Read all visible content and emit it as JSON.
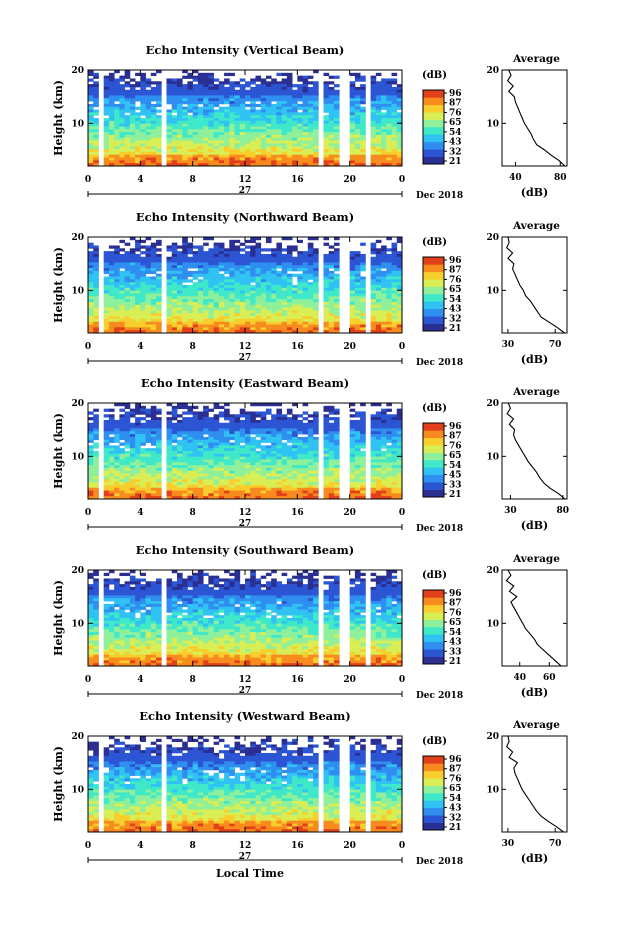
{
  "figure": {
    "xlabel": "Local Time"
  },
  "colormap": [
    "#2b2f92",
    "#2c55d4",
    "#2f8ef0",
    "#30c2f2",
    "#3ee8c9",
    "#8ef09a",
    "#d9ee55",
    "#f8ce2c",
    "#f78b1e",
    "#e2401a"
  ],
  "chart_data": [
    {
      "type": "heatmap",
      "title": "Echo Intensity (Vertical Beam)",
      "ylabel": "Height (km)",
      "x_ticks": [
        "0",
        "4",
        "8",
        "12",
        "16",
        "20",
        "0"
      ],
      "xlim": [
        0,
        24
      ],
      "y_ticks": [
        "20",
        "10"
      ],
      "ylim": [
        2,
        20
      ],
      "date_center": "27",
      "date_right": "Dec 2018",
      "colorbar": {
        "unit": "(dB)",
        "ticks": [
          "96",
          "87",
          "76",
          "65",
          "54",
          "43",
          "32",
          "21"
        ],
        "range": [
          21,
          96
        ]
      },
      "data_gaps_hours": [
        [
          0.7,
          1.0
        ],
        [
          5.6,
          5.8
        ],
        [
          17.6,
          17.8
        ],
        [
          19.4,
          20.0
        ],
        [
          21.1,
          21.5
        ]
      ],
      "profile": {
        "title": "Average",
        "xlabel": "(dB)",
        "x_ticks": [
          "40",
          "80"
        ],
        "xlim": [
          28,
          86
        ],
        "y_ticks": [
          "20",
          "10"
        ],
        "heights": [
          2,
          3,
          4,
          5,
          6,
          7,
          8,
          9,
          10,
          11,
          12,
          13,
          14,
          15,
          16,
          17,
          18,
          19,
          20
        ],
        "values": [
          84,
          79,
          72,
          66,
          59,
          56,
          54,
          51,
          48,
          46,
          44,
          42,
          40,
          39,
          34,
          38,
          33,
          36,
          34
        ]
      }
    },
    {
      "type": "heatmap",
      "title": "Echo Intensity (Northward Beam)",
      "ylabel": "Height (km)",
      "x_ticks": [
        "0",
        "4",
        "8",
        "12",
        "16",
        "20",
        "0"
      ],
      "xlim": [
        0,
        24
      ],
      "y_ticks": [
        "20",
        "10"
      ],
      "ylim": [
        2,
        20
      ],
      "date_center": "27",
      "date_right": "Dec 2018",
      "colorbar": {
        "unit": "(dB)",
        "ticks": [
          "96",
          "87",
          "76",
          "65",
          "54",
          "43",
          "32",
          "21"
        ],
        "range": [
          21,
          96
        ]
      },
      "data_gaps_hours": [
        [
          0.7,
          1.0
        ],
        [
          5.6,
          5.8
        ],
        [
          11.4,
          11.6
        ],
        [
          17.6,
          17.8
        ],
        [
          19.4,
          20.0
        ],
        [
          21.1,
          21.5
        ]
      ],
      "profile": {
        "title": "Average",
        "xlabel": "(dB)",
        "x_ticks": [
          "30",
          "70"
        ],
        "xlim": [
          25,
          80
        ],
        "y_ticks": [
          "20",
          "10"
        ],
        "heights": [
          2,
          3,
          4,
          5,
          6,
          7,
          8,
          9,
          10,
          11,
          12,
          13,
          14,
          15,
          16,
          17,
          18,
          19,
          20
        ],
        "values": [
          78,
          72,
          65,
          58,
          55,
          52,
          49,
          45,
          43,
          40,
          38,
          36,
          34,
          35,
          30,
          34,
          29,
          31,
          30
        ]
      }
    },
    {
      "type": "heatmap",
      "title": "Echo Intensity (Eastward Beam)",
      "ylabel": "Height (km)",
      "x_ticks": [
        "0",
        "4",
        "8",
        "12",
        "16",
        "20",
        "0"
      ],
      "xlim": [
        0,
        24
      ],
      "y_ticks": [
        "20",
        "10"
      ],
      "ylim": [
        2,
        20
      ],
      "date_center": "27",
      "date_right": "Dec 2018",
      "colorbar": {
        "unit": "(dB)",
        "ticks": [
          "96",
          "87",
          "76",
          "65",
          "54",
          "45",
          "33",
          "21"
        ],
        "range": [
          21,
          96
        ]
      },
      "data_gaps_hours": [
        [
          0.7,
          1.0
        ],
        [
          5.6,
          5.8
        ],
        [
          11.4,
          11.6
        ],
        [
          17.6,
          17.8
        ],
        [
          19.4,
          20.0
        ],
        [
          21.1,
          21.5
        ]
      ],
      "profile": {
        "title": "Average",
        "xlabel": "(dB)",
        "x_ticks": [
          "30",
          "80"
        ],
        "xlim": [
          22,
          84
        ],
        "y_ticks": [
          "20",
          "10"
        ],
        "heights": [
          2,
          3,
          4,
          5,
          6,
          7,
          8,
          9,
          10,
          11,
          12,
          13,
          14,
          15,
          16,
          17,
          18,
          19,
          20
        ],
        "values": [
          82,
          76,
          68,
          62,
          58,
          55,
          51,
          47,
          44,
          41,
          38,
          35,
          33,
          34,
          29,
          33,
          27,
          30,
          28
        ]
      }
    },
    {
      "type": "heatmap",
      "title": "Echo Intensity (Southward Beam)",
      "ylabel": "Height (km)",
      "x_ticks": [
        "0",
        "4",
        "8",
        "12",
        "16",
        "20",
        "0"
      ],
      "xlim": [
        0,
        24
      ],
      "y_ticks": [
        "20",
        "10"
      ],
      "ylim": [
        2,
        20
      ],
      "date_center": "27",
      "date_right": "Dec 2018",
      "colorbar": {
        "unit": "(dB)",
        "ticks": [
          "96",
          "87",
          "76",
          "65",
          "54",
          "43",
          "33",
          "21"
        ],
        "range": [
          21,
          96
        ]
      },
      "data_gaps_hours": [
        [
          0.7,
          1.0
        ],
        [
          5.6,
          5.8
        ],
        [
          17.6,
          17.8
        ],
        [
          19.4,
          20.0
        ],
        [
          21.1,
          21.5
        ]
      ],
      "profile": {
        "title": "Average",
        "xlabel": "(dB)",
        "x_ticks": [
          "40",
          "60"
        ],
        "xlim": [
          28,
          72
        ],
        "y_ticks": [
          "20",
          "10"
        ],
        "heights": [
          2,
          3,
          4,
          5,
          6,
          7,
          8,
          9,
          10,
          11,
          12,
          13,
          14,
          15,
          16,
          17,
          18,
          19,
          20
        ],
        "values": [
          68,
          64,
          60,
          56,
          52,
          50,
          47,
          44,
          42,
          40,
          38,
          36,
          34,
          38,
          33,
          36,
          31,
          34,
          32
        ]
      }
    },
    {
      "type": "heatmap",
      "title": "Echo Intensity (Westward Beam)",
      "ylabel": "Height (km)",
      "x_ticks": [
        "0",
        "4",
        "8",
        "12",
        "16",
        "20",
        "0"
      ],
      "xlim": [
        0,
        24
      ],
      "y_ticks": [
        "20",
        "10"
      ],
      "ylim": [
        2,
        20
      ],
      "date_center": "27",
      "date_right": "Dec 2018",
      "colorbar": {
        "unit": "(dB)",
        "ticks": [
          "96",
          "87",
          "76",
          "65",
          "54",
          "43",
          "32",
          "21"
        ],
        "range": [
          21,
          96
        ]
      },
      "data_gaps_hours": [
        [
          0.7,
          1.0
        ],
        [
          5.6,
          5.8
        ],
        [
          11.4,
          11.6
        ],
        [
          17.6,
          17.8
        ],
        [
          19.4,
          20.0
        ],
        [
          21.1,
          21.5
        ]
      ],
      "profile": {
        "title": "Average",
        "xlabel": "(dB)",
        "x_ticks": [
          "30",
          "70"
        ],
        "xlim": [
          25,
          80
        ],
        "y_ticks": [
          "20",
          "10"
        ],
        "heights": [
          2,
          3,
          4,
          5,
          6,
          7,
          8,
          9,
          10,
          11,
          12,
          13,
          14,
          15,
          16,
          17,
          18,
          19,
          20
        ],
        "values": [
          77,
          71,
          64,
          58,
          54,
          51,
          48,
          45,
          42,
          40,
          38,
          36,
          35,
          38,
          31,
          34,
          29,
          31,
          30
        ]
      }
    }
  ]
}
